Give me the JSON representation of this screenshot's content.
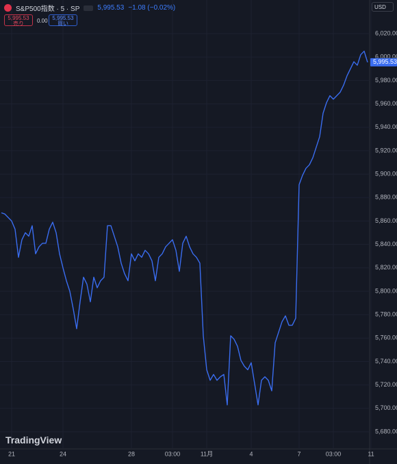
{
  "header": {
    "symbol": "S&P500指数 · 5 · SP",
    "price": "5,995.53",
    "change": "−1.08 (−0.02%)",
    "sell_price": "5,995.53",
    "sell_label": "売り",
    "spread": "0.00",
    "buy_price": "5,995.53",
    "buy_label": "買い",
    "currency": "USD",
    "brand": "TradingView"
  },
  "chart_data": {
    "type": "line",
    "color": "#3a6df0",
    "grid": true,
    "last_label": "5,995.53",
    "categories": [
      null,
      null,
      null,
      "21",
      null,
      null,
      null,
      null,
      null,
      null,
      null,
      null,
      null,
      null,
      null,
      null,
      null,
      null,
      "24",
      null,
      null,
      null,
      null,
      null,
      null,
      null,
      null,
      null,
      null,
      null,
      null,
      null,
      null,
      null,
      null,
      null,
      null,
      null,
      "28",
      null,
      null,
      null,
      null,
      null,
      null,
      null,
      null,
      null,
      null,
      null,
      "03:00",
      null,
      null,
      null,
      null,
      null,
      null,
      null,
      null,
      null,
      "11月",
      null,
      null,
      null,
      null,
      null,
      null,
      null,
      null,
      null,
      null,
      null,
      null,
      "4",
      null,
      null,
      null,
      null,
      null,
      null,
      null,
      null,
      null,
      null,
      null,
      null,
      null,
      "7",
      null,
      null,
      null,
      null,
      null,
      null,
      null,
      null,
      null,
      "03:00",
      null,
      null,
      null,
      null,
      null,
      null,
      null,
      null,
      null,
      null,
      "11"
    ],
    "values": [
      5867,
      5866,
      5863,
      5860,
      5853,
      5829,
      5844,
      5850,
      5847,
      5856,
      5832,
      5838,
      5841,
      5841,
      5853,
      5859,
      5850,
      5832,
      5820,
      5809,
      5800,
      5785,
      5768,
      5791,
      5812,
      5806,
      5791,
      5812,
      5803,
      5809,
      5812,
      5856,
      5856,
      5847,
      5838,
      5824,
      5815,
      5809,
      5832,
      5826,
      5832,
      5829,
      5835,
      5832,
      5826,
      5809,
      5829,
      5832,
      5838,
      5841,
      5844,
      5835,
      5817,
      5841,
      5847,
      5838,
      5832,
      5829,
      5824,
      5762,
      5733,
      5724,
      5729,
      5724,
      5727,
      5729,
      5703,
      5762,
      5759,
      5753,
      5741,
      5736,
      5733,
      5739,
      5721,
      5703,
      5724,
      5727,
      5724,
      5715,
      5756,
      5765,
      5774,
      5779,
      5771,
      5771,
      5777,
      5891,
      5899,
      5905,
      5908,
      5914,
      5923,
      5932,
      5952,
      5961,
      5967,
      5964,
      5967,
      5970,
      5976,
      5984,
      5990,
      5996,
      5993,
      6002,
      6005,
      5995.53,
      null
    ],
    "ylim": [
      5665.4,
      6048.7
    ],
    "yticks": [
      {
        "value": 5680,
        "label": "5,680.00"
      },
      {
        "value": 5700,
        "label": "5,700.00"
      },
      {
        "value": 5720,
        "label": "5,720.00"
      },
      {
        "value": 5740,
        "label": "5,740.00"
      },
      {
        "value": 5760,
        "label": "5,760.00"
      },
      {
        "value": 5780,
        "label": "5,780.00"
      },
      {
        "value": 5800,
        "label": "5,800.00"
      },
      {
        "value": 5820,
        "label": "5,820.00"
      },
      {
        "value": 5840,
        "label": "5,840.00"
      },
      {
        "value": 5860,
        "label": "5,860.00"
      },
      {
        "value": 5880,
        "label": "5,880.00"
      },
      {
        "value": 5900,
        "label": "5,900.00"
      },
      {
        "value": 5920,
        "label": "5,920.00"
      },
      {
        "value": 5940,
        "label": "5,940.00"
      },
      {
        "value": 5960,
        "label": "5,960.00"
      },
      {
        "value": 5980,
        "label": "5,980.00"
      },
      {
        "value": 6000,
        "label": "6,000.00"
      },
      {
        "value": 6020,
        "label": "6,020.00"
      }
    ]
  }
}
